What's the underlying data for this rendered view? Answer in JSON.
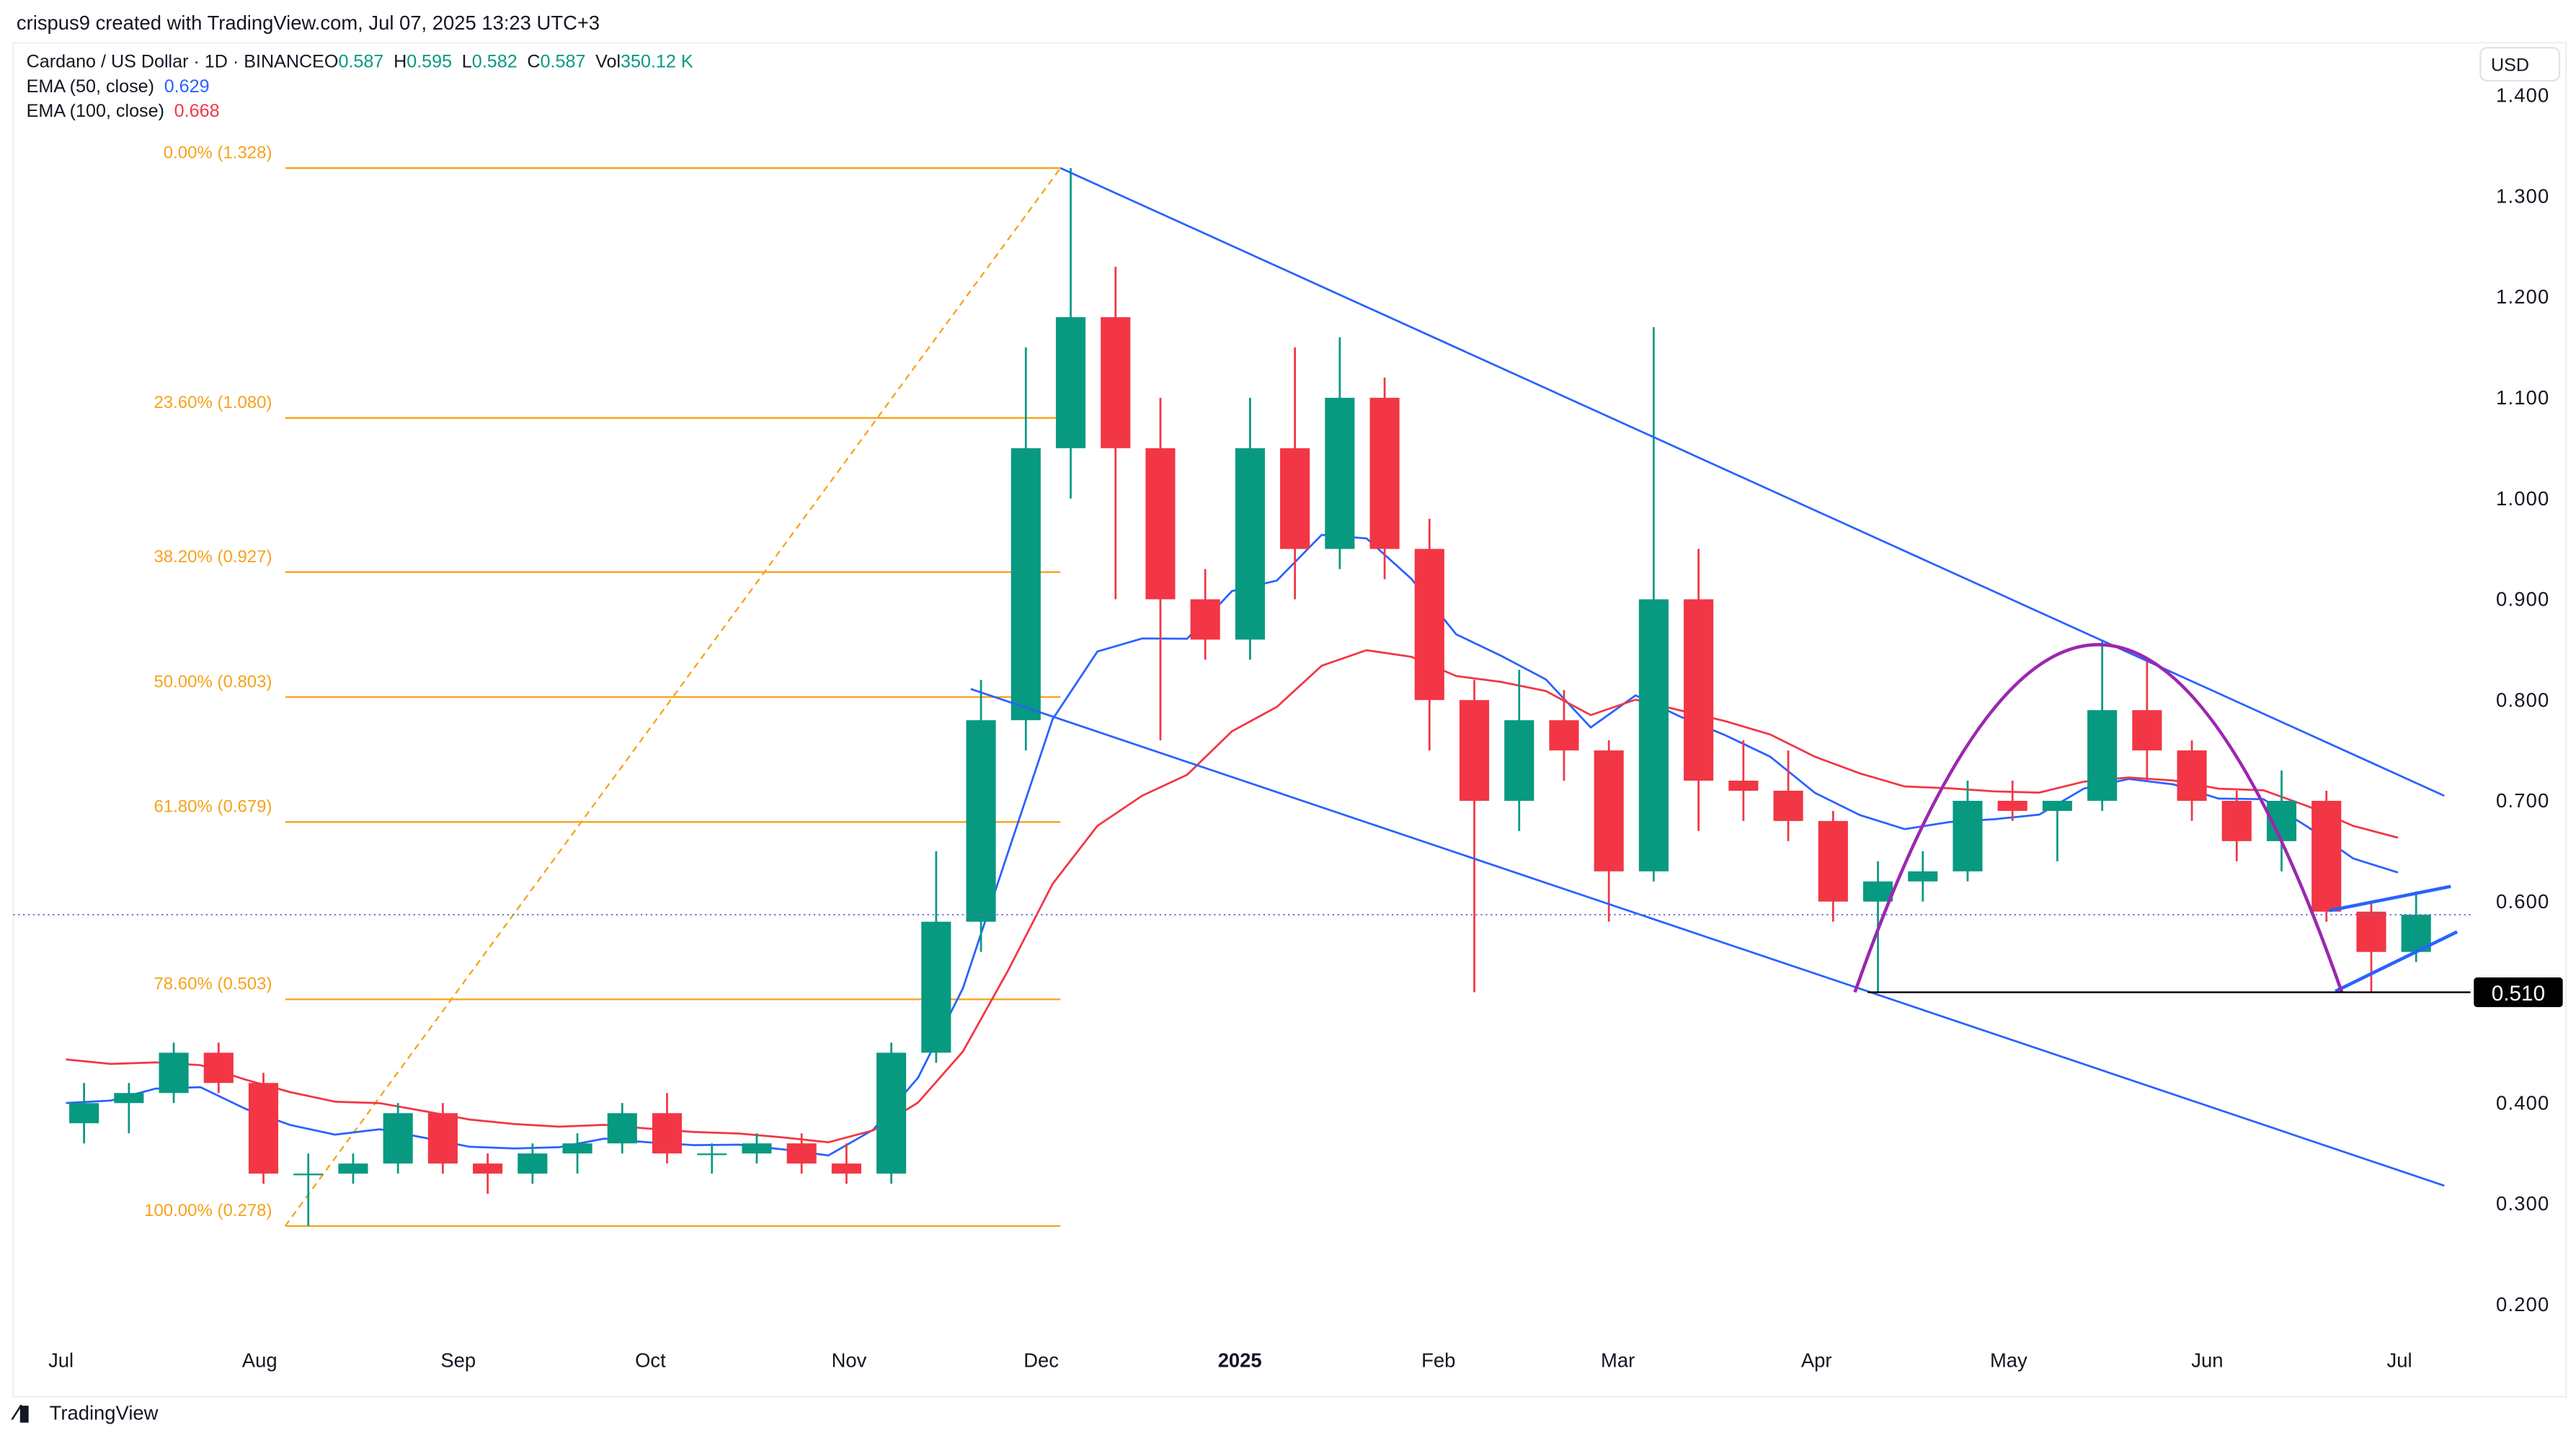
{
  "header": {
    "credit": "crispus9 created with TradingView.com, Jul 07, 2025 13:23 UTC+3",
    "symbol": "Cardano / US Dollar · 1D · BINANCE",
    "ohlc": [
      {
        "label": "O",
        "value": "0.587"
      },
      {
        "label": "H",
        "value": "0.595"
      },
      {
        "label": "L",
        "value": "0.582"
      },
      {
        "label": "C",
        "value": "0.587"
      },
      {
        "label": "Vol",
        "value": "350.12 K"
      }
    ],
    "ema50": {
      "label": "EMA (50, close)",
      "value": "0.629"
    },
    "ema100": {
      "label": "EMA (100, close)",
      "value": "0.668"
    }
  },
  "footer": {
    "logo": "TradingView"
  },
  "colors": {
    "up": "#089981",
    "down": "#f23645",
    "ema50": "#2962ff",
    "ema100": "#f23645",
    "fib": "#f7a21b",
    "channel": "#2962ff",
    "arc": "#9c27b0",
    "text": "#131722"
  },
  "chart_data": {
    "type": "candlestick",
    "currency": "USD",
    "ylim": [
      0.2,
      1.4
    ],
    "yticks": [
      "1.400",
      "1.300",
      "1.200",
      "1.100",
      "1.000",
      "0.900",
      "0.800",
      "0.700",
      "0.600",
      "0.400",
      "0.300",
      "0.200"
    ],
    "xticks": [
      {
        "label": "Jul",
        "date": "2024-07-01"
      },
      {
        "label": "Aug",
        "date": "2024-08-01"
      },
      {
        "label": "Sep",
        "date": "2024-09-01"
      },
      {
        "label": "Oct",
        "date": "2024-10-01"
      },
      {
        "label": "Nov",
        "date": "2024-11-01"
      },
      {
        "label": "Dec",
        "date": "2024-12-01"
      },
      {
        "label": "2025",
        "date": "2025-01-01",
        "bold": true
      },
      {
        "label": "Feb",
        "date": "2025-02-01"
      },
      {
        "label": "Mar",
        "date": "2025-03-01"
      },
      {
        "label": "Apr",
        "date": "2025-04-01"
      },
      {
        "label": "May",
        "date": "2025-05-01"
      },
      {
        "label": "Jun",
        "date": "2025-06-01"
      },
      {
        "label": "Jul",
        "date": "2025-07-01"
      }
    ],
    "candles_weekly_approx": [
      [
        "2024-07-01",
        0.38,
        0.42,
        0.36,
        0.4
      ],
      [
        "2024-07-08",
        0.4,
        0.42,
        0.37,
        0.41
      ],
      [
        "2024-07-15",
        0.41,
        0.46,
        0.4,
        0.45
      ],
      [
        "2024-07-22",
        0.45,
        0.46,
        0.41,
        0.42
      ],
      [
        "2024-07-29",
        0.42,
        0.43,
        0.32,
        0.33
      ],
      [
        "2024-08-05",
        0.33,
        0.35,
        0.278,
        0.33
      ],
      [
        "2024-08-12",
        0.33,
        0.35,
        0.32,
        0.34
      ],
      [
        "2024-08-19",
        0.34,
        0.4,
        0.33,
        0.39
      ],
      [
        "2024-08-26",
        0.39,
        0.4,
        0.33,
        0.34
      ],
      [
        "2024-09-02",
        0.34,
        0.35,
        0.31,
        0.33
      ],
      [
        "2024-09-09",
        0.33,
        0.36,
        0.32,
        0.35
      ],
      [
        "2024-09-16",
        0.35,
        0.37,
        0.33,
        0.36
      ],
      [
        "2024-09-23",
        0.36,
        0.4,
        0.35,
        0.39
      ],
      [
        "2024-09-30",
        0.39,
        0.41,
        0.34,
        0.35
      ],
      [
        "2024-10-07",
        0.35,
        0.36,
        0.33,
        0.35
      ],
      [
        "2024-10-14",
        0.35,
        0.37,
        0.34,
        0.36
      ],
      [
        "2024-10-21",
        0.36,
        0.37,
        0.33,
        0.34
      ],
      [
        "2024-10-28",
        0.34,
        0.36,
        0.32,
        0.33
      ],
      [
        "2024-11-04",
        0.33,
        0.46,
        0.32,
        0.45
      ],
      [
        "2024-11-11",
        0.45,
        0.65,
        0.44,
        0.58
      ],
      [
        "2024-11-18",
        0.58,
        0.82,
        0.55,
        0.78
      ],
      [
        "2024-11-25",
        0.78,
        1.15,
        0.75,
        1.05
      ],
      [
        "2024-12-02",
        1.05,
        1.328,
        1.0,
        1.18
      ],
      [
        "2024-12-09",
        1.18,
        1.23,
        0.9,
        1.05
      ],
      [
        "2024-12-16",
        1.05,
        1.1,
        0.76,
        0.9
      ],
      [
        "2024-12-23",
        0.9,
        0.93,
        0.84,
        0.86
      ],
      [
        "2024-12-30",
        0.86,
        1.1,
        0.84,
        1.05
      ],
      [
        "2025-01-06",
        1.05,
        1.15,
        0.9,
        0.95
      ],
      [
        "2025-01-13",
        0.95,
        1.16,
        0.93,
        1.1
      ],
      [
        "2025-01-20",
        1.1,
        1.12,
        0.92,
        0.95
      ],
      [
        "2025-01-27",
        0.95,
        0.98,
        0.75,
        0.8
      ],
      [
        "2025-02-03",
        0.8,
        0.82,
        0.51,
        0.7
      ],
      [
        "2025-02-10",
        0.7,
        0.83,
        0.67,
        0.78
      ],
      [
        "2025-02-17",
        0.78,
        0.81,
        0.72,
        0.75
      ],
      [
        "2025-02-24",
        0.75,
        0.76,
        0.58,
        0.63
      ],
      [
        "2025-03-03",
        0.63,
        1.17,
        0.62,
        0.9
      ],
      [
        "2025-03-10",
        0.9,
        0.95,
        0.67,
        0.72
      ],
      [
        "2025-03-17",
        0.72,
        0.76,
        0.68,
        0.71
      ],
      [
        "2025-03-24",
        0.71,
        0.75,
        0.66,
        0.68
      ],
      [
        "2025-03-31",
        0.68,
        0.69,
        0.58,
        0.6
      ],
      [
        "2025-04-07",
        0.6,
        0.64,
        0.51,
        0.62
      ],
      [
        "2025-04-14",
        0.62,
        0.65,
        0.6,
        0.63
      ],
      [
        "2025-04-21",
        0.63,
        0.72,
        0.62,
        0.7
      ],
      [
        "2025-04-28",
        0.7,
        0.72,
        0.68,
        0.69
      ],
      [
        "2025-05-05",
        0.69,
        0.7,
        0.64,
        0.7
      ],
      [
        "2025-05-12",
        0.7,
        0.86,
        0.69,
        0.79
      ],
      [
        "2025-05-19",
        0.79,
        0.84,
        0.72,
        0.75
      ],
      [
        "2025-05-26",
        0.75,
        0.76,
        0.68,
        0.7
      ],
      [
        "2025-06-02",
        0.7,
        0.71,
        0.64,
        0.66
      ],
      [
        "2025-06-09",
        0.66,
        0.73,
        0.63,
        0.7
      ],
      [
        "2025-06-16",
        0.7,
        0.71,
        0.58,
        0.59
      ],
      [
        "2025-06-23",
        0.59,
        0.6,
        0.51,
        0.55
      ],
      [
        "2025-06-30",
        0.55,
        0.61,
        0.54,
        0.587
      ]
    ],
    "last_price": 0.587,
    "fibonacci": {
      "from": {
        "date": "2024-08-05",
        "price": 0.278
      },
      "to": {
        "date": "2024-12-04",
        "price": 1.328
      },
      "levels": [
        {
          "label": "0.00% (1.328)",
          "price": 1.328
        },
        {
          "label": "23.60% (1.080)",
          "price": 1.08
        },
        {
          "label": "38.20% (0.927)",
          "price": 0.927
        },
        {
          "label": "50.00% (0.803)",
          "price": 0.803
        },
        {
          "label": "61.80% (0.679)",
          "price": 0.679
        },
        {
          "label": "78.60% (0.503)",
          "price": 0.503
        },
        {
          "label": "100.00% (0.278)",
          "price": 0.278
        }
      ]
    },
    "trendlines": [
      {
        "name": "channel-upper",
        "a": [
          "2024-12-04",
          1.328
        ],
        "b": [
          "2025-07-08",
          0.705
        ]
      },
      {
        "name": "channel-lower",
        "a": [
          "2024-11-20",
          0.811
        ],
        "b": [
          "2025-07-08",
          0.318
        ]
      },
      {
        "name": "wedge-upper",
        "a": [
          "2025-06-20",
          0.591
        ],
        "b": [
          "2025-07-09",
          0.615
        ]
      },
      {
        "name": "wedge-lower",
        "a": [
          "2025-06-21",
          0.511
        ],
        "b": [
          "2025-07-10",
          0.57
        ]
      }
    ],
    "arc": {
      "start": [
        "2025-04-07",
        0.51
      ],
      "peak": [
        "2025-05-15",
        0.855
      ],
      "end": [
        "2025-06-22",
        0.51
      ]
    },
    "support": {
      "label": "0.510",
      "price": 0.51,
      "from": "2025-04-09"
    }
  }
}
